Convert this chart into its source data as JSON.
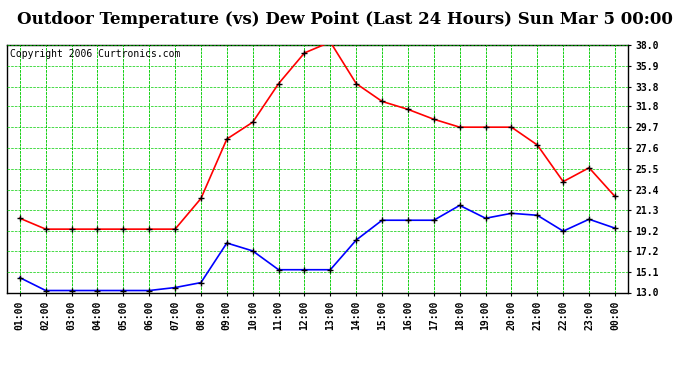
{
  "title": "Outdoor Temperature (vs) Dew Point (Last 24 Hours) Sun Mar 5 00:00",
  "copyright": "Copyright 2006 Curtronics.com",
  "x_labels": [
    "01:00",
    "02:00",
    "03:00",
    "04:00",
    "05:00",
    "06:00",
    "07:00",
    "08:00",
    "09:00",
    "10:00",
    "11:00",
    "12:00",
    "13:00",
    "14:00",
    "15:00",
    "16:00",
    "17:00",
    "18:00",
    "19:00",
    "20:00",
    "21:00",
    "22:00",
    "23:00",
    "00:00"
  ],
  "temp_red": [
    20.5,
    19.4,
    19.4,
    19.4,
    19.4,
    19.4,
    19.4,
    22.5,
    28.5,
    30.2,
    34.1,
    37.2,
    38.3,
    34.1,
    32.3,
    31.5,
    30.5,
    29.7,
    29.7,
    29.7,
    27.9,
    24.2,
    25.6,
    22.7
  ],
  "dew_blue": [
    14.5,
    13.2,
    13.2,
    13.2,
    13.2,
    13.2,
    13.5,
    14.0,
    18.0,
    17.2,
    15.3,
    15.3,
    15.3,
    18.3,
    20.3,
    20.3,
    20.3,
    21.8,
    20.5,
    21.0,
    20.8,
    19.2,
    20.4,
    19.5
  ],
  "y_ticks": [
    13.0,
    15.1,
    17.2,
    19.2,
    21.3,
    23.4,
    25.5,
    27.6,
    29.7,
    31.8,
    33.8,
    35.9,
    38.0
  ],
  "ymin": 13.0,
  "ymax": 38.0,
  "bg_color": "#ffffff",
  "plot_bg_color": "#ffffff",
  "grid_color": "#00cc00",
  "title_fontsize": 12,
  "copyright_fontsize": 7,
  "tick_fontsize": 7,
  "red_color": "#ff0000",
  "blue_color": "#0000ff",
  "marker_color": "#000000"
}
